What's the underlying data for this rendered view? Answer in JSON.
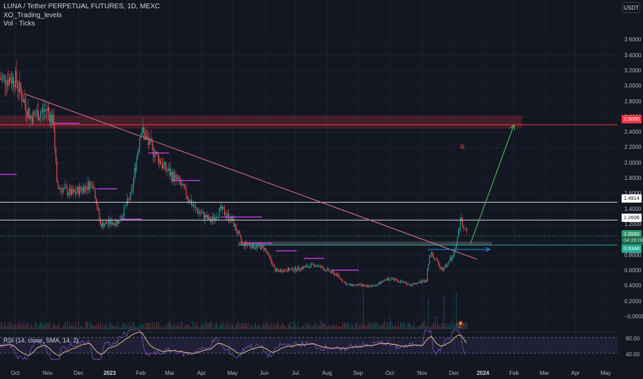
{
  "legend": {
    "symbol_line": "LUNA / Tether PERPETUAL FUTURES, 1D, MEXC",
    "indicator1": "XO_Trading_levels",
    "indicator2": "Vol · Ticks"
  },
  "rsi_legend": "RSI (14, close, SMA, 14, 2)",
  "currency_button": "USDT",
  "price_axis": [
    "3.6000",
    "3.4000",
    "3.2000",
    "3.0000",
    "2.8000",
    "2.6000",
    "2.4000",
    "2.2000",
    "2.0000",
    "1.8000",
    "1.6000",
    "1.4000",
    "1.2000",
    "1.0000",
    "0.8000",
    "0.6000",
    "0.4000",
    "0.2000",
    "−0.0000"
  ],
  "rsi_axis": [
    "80.00",
    "40.00"
  ],
  "price_tags": {
    "resistance_top": "2.5000",
    "level_1": "1.4914",
    "level_2": "1.2606",
    "current_price": "1.0550",
    "countdown": "04:26:08",
    "support": "0.9348"
  },
  "time_axis": [
    {
      "label": "Oct",
      "bold": false
    },
    {
      "label": "Nov",
      "bold": false
    },
    {
      "label": "Dec",
      "bold": false
    },
    {
      "label": "2023",
      "bold": true
    },
    {
      "label": "Feb",
      "bold": false
    },
    {
      "label": "Mar",
      "bold": false
    },
    {
      "label": "Apr",
      "bold": false
    },
    {
      "label": "May",
      "bold": false
    },
    {
      "label": "Jun",
      "bold": false
    },
    {
      "label": "Jul",
      "bold": false
    },
    {
      "label": "Aug",
      "bold": false
    },
    {
      "label": "Sep",
      "bold": false
    },
    {
      "label": "Oct",
      "bold": false
    },
    {
      "label": "Nov",
      "bold": false
    },
    {
      "label": "Dec",
      "bold": false
    },
    {
      "label": "2024",
      "bold": true
    },
    {
      "label": "Feb",
      "bold": false
    },
    {
      "label": "Mar",
      "bold": false
    },
    {
      "label": "Apr",
      "bold": false
    },
    {
      "label": "May",
      "bold": false
    }
  ],
  "colors": {
    "background": "#131722",
    "up": "#26a69a",
    "down": "#ef5350",
    "trendline": "#e8799b",
    "projection_arrow": "#4caf50",
    "resistance_zone": "#f23645",
    "rsi_line": "#7e57c2",
    "rsi_ma": "#f5d28a"
  },
  "icons": {
    "lightning": "lightning-icon",
    "gear": "gear-icon"
  },
  "chart_data": {
    "type": "candlestick",
    "symbol": "LUNA / Tether PERPETUAL FUTURES",
    "interval": "1D",
    "exchange": "MEXC",
    "y_range": [
      0,
      3.6
    ],
    "x_range": [
      "2022-10",
      "2024-05"
    ],
    "approx_close_path": [
      {
        "x": "2022-10-01",
        "y": 3.1
      },
      {
        "x": "2022-10-15",
        "y": 2.6
      },
      {
        "x": "2022-11-01",
        "y": 2.7
      },
      {
        "x": "2022-11-07",
        "y": 2.5
      },
      {
        "x": "2022-11-10",
        "y": 1.7
      },
      {
        "x": "2022-11-25",
        "y": 1.6
      },
      {
        "x": "2022-12-15",
        "y": 1.75
      },
      {
        "x": "2022-12-22",
        "y": 1.2
      },
      {
        "x": "2023-01-10",
        "y": 1.25
      },
      {
        "x": "2023-01-22",
        "y": 1.6
      },
      {
        "x": "2023-02-01",
        "y": 2.45
      },
      {
        "x": "2023-02-10",
        "y": 2.25
      },
      {
        "x": "2023-02-25",
        "y": 1.95
      },
      {
        "x": "2023-03-10",
        "y": 1.75
      },
      {
        "x": "2023-03-25",
        "y": 1.4
      },
      {
        "x": "2023-04-10",
        "y": 1.25
      },
      {
        "x": "2023-04-20",
        "y": 1.4
      },
      {
        "x": "2023-05-01",
        "y": 1.25
      },
      {
        "x": "2023-05-10",
        "y": 0.95
      },
      {
        "x": "2023-06-01",
        "y": 0.9
      },
      {
        "x": "2023-06-12",
        "y": 0.6
      },
      {
        "x": "2023-07-01",
        "y": 0.62
      },
      {
        "x": "2023-07-20",
        "y": 0.68
      },
      {
        "x": "2023-08-10",
        "y": 0.55
      },
      {
        "x": "2023-08-20",
        "y": 0.42
      },
      {
        "x": "2023-09-15",
        "y": 0.4
      },
      {
        "x": "2023-10-01",
        "y": 0.5
      },
      {
        "x": "2023-10-20",
        "y": 0.42
      },
      {
        "x": "2023-11-05",
        "y": 0.48
      },
      {
        "x": "2023-11-08",
        "y": 0.85
      },
      {
        "x": "2023-11-20",
        "y": 0.62
      },
      {
        "x": "2023-12-01",
        "y": 0.8
      },
      {
        "x": "2023-12-08",
        "y": 1.26
      },
      {
        "x": "2023-12-15",
        "y": 1.055
      }
    ],
    "horizontal_levels": [
      2.5,
      1.4914,
      1.2606,
      0.9348
    ],
    "resistance_zone": [
      2.45,
      2.62
    ],
    "support_zone": [
      0.93,
      0.98
    ],
    "trendline": {
      "from": {
        "x": "2022-10-10",
        "y": 2.9
      },
      "to": {
        "x": "2023-12-25",
        "y": 0.75
      }
    },
    "projection_arrow": {
      "from": {
        "x": "2023-12-18",
        "y": 0.95
      },
      "to": {
        "x": "2024-01-31",
        "y": 2.5
      }
    },
    "rsi": {
      "overbought": 70,
      "oversold": 30,
      "last_approx": 60
    }
  }
}
